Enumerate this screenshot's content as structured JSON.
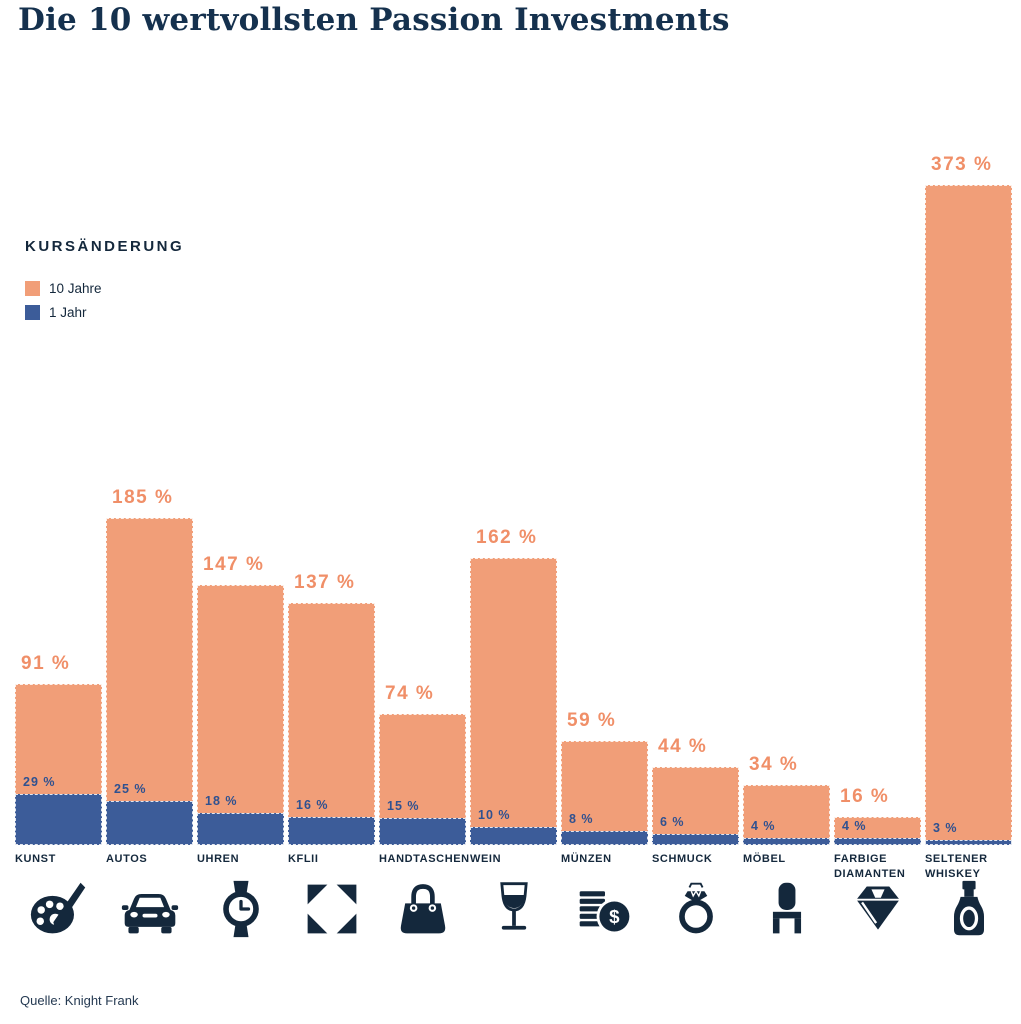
{
  "title": "Die 10 wertvollsten Passion Investments",
  "legend": {
    "heading": "KURSÄNDERUNG",
    "items": [
      {
        "label": "10 Jahre",
        "color": "#F19E78"
      },
      {
        "label": "1 Jahr",
        "color": "#3C5C99"
      }
    ]
  },
  "source": "Quelle: Knight Frank",
  "colors": {
    "bar_10_jahre": "#F19E78",
    "bar_1_jahr": "#3C5C99",
    "label_10_jahre": "#F08F68",
    "label_1_jahr": "#2F5190",
    "text_navy": "#14283C"
  },
  "chart_data": {
    "type": "bar",
    "title": "Die 10 wertvollsten Passion Investments",
    "categories": [
      "KUNST",
      "AUTOS",
      "UHREN",
      "KFLII",
      "HANDTASCHEN",
      "WEIN",
      "MÜNZEN",
      "SCHMUCK",
      "MÖBEL",
      "FARBIGE DIAMANTEN",
      "SELTENER WHISKEY"
    ],
    "series": [
      {
        "name": "10 Jahre",
        "color": "#F19E78",
        "values": [
          91,
          185,
          147,
          137,
          74,
          162,
          59,
          44,
          34,
          16,
          373
        ]
      },
      {
        "name": "1 Jahr",
        "color": "#3C5C99",
        "values": [
          29,
          25,
          18,
          16,
          15,
          10,
          8,
          6,
          4,
          4,
          3
        ]
      }
    ],
    "value_suffix": " %",
    "ylim": [
      0,
      373
    ],
    "grid": false,
    "legend_position": "top-left",
    "icons": [
      "palette",
      "car",
      "watch",
      "kflii-pattern",
      "handbag",
      "wine-glass",
      "coins",
      "ring",
      "chair",
      "diamond",
      "whiskey-bottle"
    ]
  }
}
